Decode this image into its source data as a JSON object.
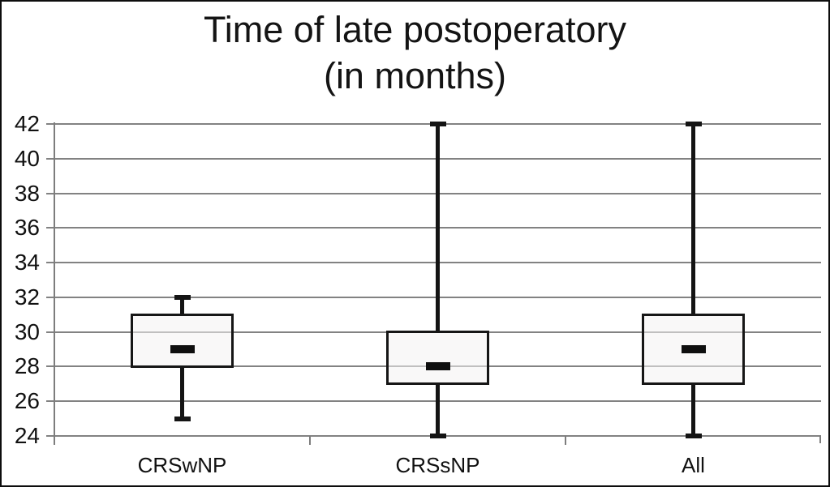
{
  "chart_data": {
    "type": "boxplot",
    "title": "Time of late postoperatory (in months)",
    "title_lines": [
      "Time of late postoperatory",
      "(in months)"
    ],
    "categories": [
      "CRSwNP",
      "CRSsNP",
      "All"
    ],
    "series": [
      {
        "label": "CRSwNP",
        "whisker_low": 25,
        "q1": 28,
        "median": 29,
        "q3": 31,
        "whisker_high": 32
      },
      {
        "label": "CRSsNP",
        "whisker_low": 24,
        "q1": 27,
        "median": 28,
        "q3": 30,
        "whisker_high": 42
      },
      {
        "label": "All",
        "whisker_low": 24,
        "q1": 27,
        "median": 29,
        "q3": 31,
        "whisker_high": 42
      }
    ],
    "y_axis": {
      "min": 24,
      "max": 42,
      "step": 2,
      "ticks": [
        24,
        26,
        28,
        30,
        32,
        34,
        36,
        38,
        40,
        42
      ]
    },
    "grid": true,
    "legend": "none",
    "colors": {
      "grid": "#828282",
      "axis": "#7d7d7d",
      "box_border": "#161616",
      "box_fill": "rgba(244,243,242,0.55)",
      "median": "#0f0f0f",
      "whisker": "#141414",
      "text": "#111111",
      "frame_border": "#0d0d0d",
      "background": "#ffffff"
    }
  }
}
